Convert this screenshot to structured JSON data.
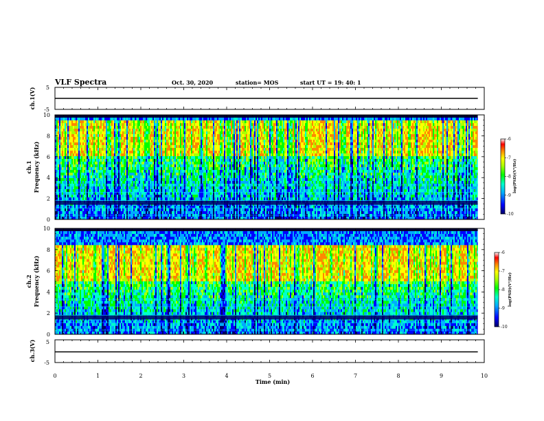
{
  "header": {
    "title": "VLF Spectra",
    "date": "Oct. 30, 2020",
    "station": "station= MOS",
    "start_time": "start  UT =  19: 40: 1"
  },
  "chart_data": {
    "type": "heatmap",
    "x_axis": {
      "label": "Time  (min)",
      "range": [
        0,
        10
      ],
      "ticks": [
        "0",
        "1",
        "2",
        "3",
        "4",
        "5",
        "6",
        "7",
        "8",
        "9",
        "10"
      ],
      "data_end": 9.85
    },
    "panels": [
      {
        "name": "ch1_voltage",
        "type": "line",
        "ylabel": "ch.1(V)",
        "yticks": [
          "5",
          "-5"
        ],
        "ylim": [
          -5,
          5
        ],
        "trace_level": 0,
        "color": "#000000"
      },
      {
        "name": "ch1_spectrogram",
        "type": "heatmap",
        "ylabel_line1": "ch.1",
        "ylabel_line2": "Frequency  (kHz)",
        "yticks": [
          "0",
          "2",
          "4",
          "6",
          "8",
          "10"
        ],
        "ylim": [
          0,
          10
        ],
        "dominant_band_khz": [
          6,
          9.2
        ],
        "colorbar": {
          "label": "log(PSD)(V²/Hz)",
          "range": [
            -10,
            -6
          ],
          "ticks": [
            "-6",
            "-7",
            "-8",
            "-9",
            "-10"
          ]
        }
      },
      {
        "name": "ch2_spectrogram",
        "type": "heatmap",
        "ylabel_line1": "ch.2",
        "ylabel_line2": "Frequency  (kHz)",
        "yticks": [
          "0",
          "2",
          "4",
          "6",
          "8",
          "10"
        ],
        "ylim": [
          0,
          10
        ],
        "dominant_band_khz": [
          5,
          8
        ],
        "colorbar": {
          "label": "log(PSD)(V²/Hz)",
          "range": [
            -10,
            -6
          ],
          "ticks": [
            "-6",
            "-7",
            "-8",
            "-9",
            "-10"
          ]
        }
      },
      {
        "name": "ch3_voltage",
        "type": "line",
        "ylabel": "ch.3(V)",
        "yticks": [
          "5",
          "-5"
        ],
        "ylim": [
          -5,
          5
        ],
        "trace_level": -0.3,
        "color": "#000000"
      }
    ],
    "colormap": [
      "#000066",
      "#0000ff",
      "#00aaff",
      "#00ffcc",
      "#00ff00",
      "#aaff00",
      "#ffff00",
      "#ff8800",
      "#ff0000",
      "#ffffff"
    ]
  }
}
